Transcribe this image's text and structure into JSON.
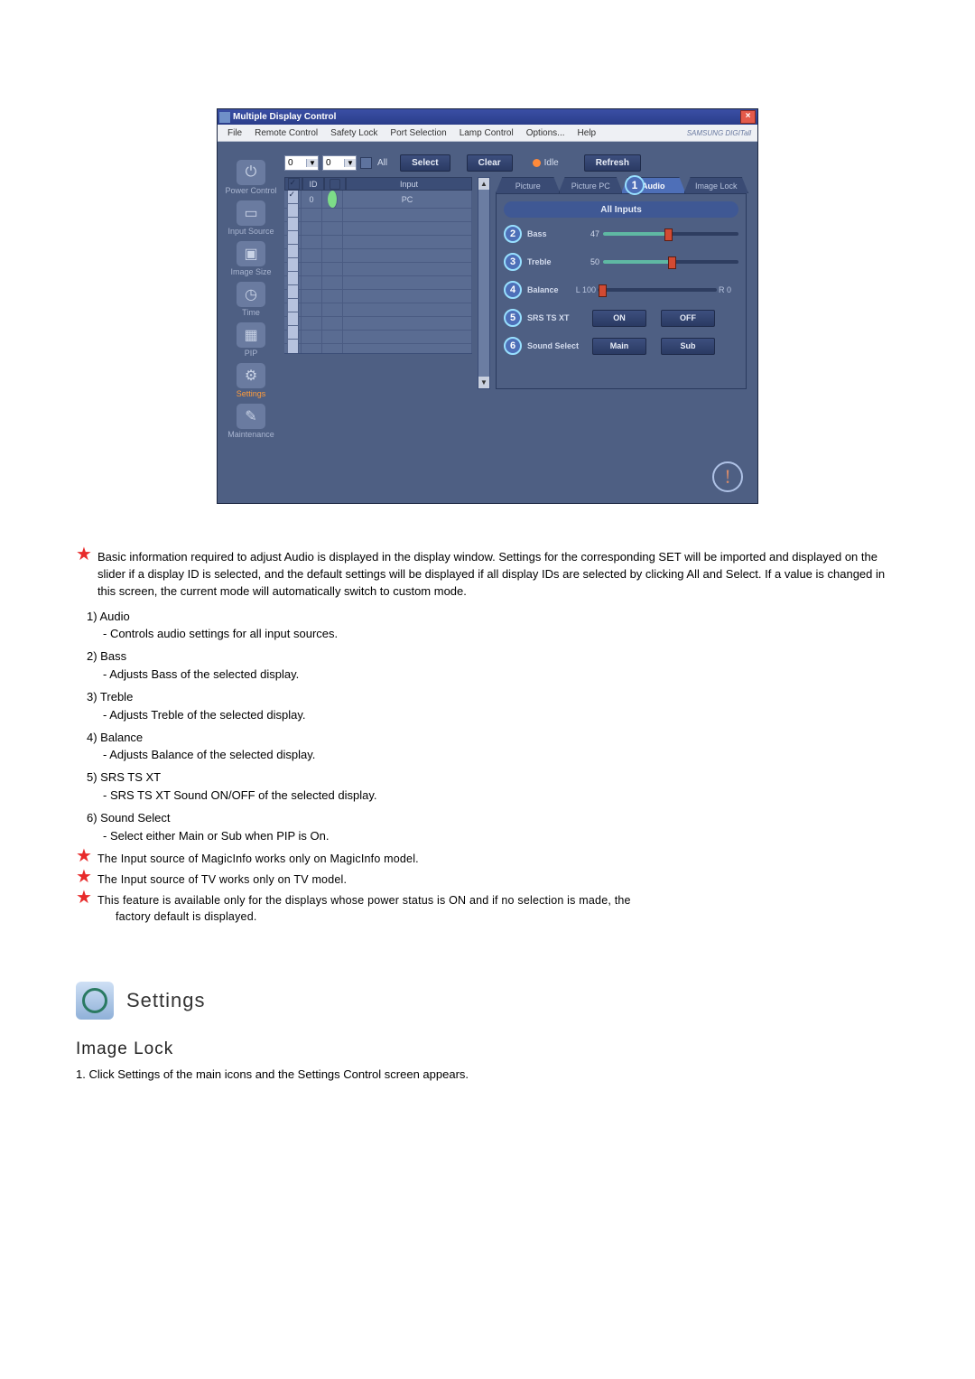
{
  "window": {
    "title": "Multiple Display Control",
    "brand": "SAMSUNG DIGITall"
  },
  "menu": [
    "File",
    "Remote Control",
    "Safety Lock",
    "Port Selection",
    "Lamp Control",
    "Options...",
    "Help"
  ],
  "sidebar": [
    {
      "label": "Power Control",
      "glyph": "⏻"
    },
    {
      "label": "Input Source",
      "glyph": "▭"
    },
    {
      "label": "Image Size",
      "glyph": "▣"
    },
    {
      "label": "Time",
      "glyph": "◷"
    },
    {
      "label": "PIP",
      "glyph": "▦"
    },
    {
      "label": "Settings",
      "glyph": "⚙",
      "active": true
    },
    {
      "label": "Maintenance",
      "glyph": "✎"
    }
  ],
  "top": {
    "dd1": "0",
    "dd2": "0",
    "all": "All",
    "select": "Select",
    "clear": "Clear",
    "idle": "Idle",
    "refresh": "Refresh"
  },
  "grid": {
    "headers": [
      "",
      "ID",
      "",
      "Input"
    ],
    "first_row": {
      "id": "0",
      "input": "PC"
    },
    "blank_rows": 11
  },
  "tabs": {
    "picture": "Picture",
    "picture_pc": "Picture PC",
    "audio": "Audio",
    "image_lock": "Image Lock",
    "callout1": "1"
  },
  "panel": {
    "all_inputs": "All Inputs",
    "bass": {
      "n": "2",
      "label": "Bass",
      "value": "47",
      "track_w": 150,
      "fill_pct": 47,
      "thumb_pct": 47
    },
    "treble": {
      "n": "3",
      "label": "Treble",
      "value": "50",
      "track_w": 150,
      "fill_pct": 50,
      "thumb_pct": 50
    },
    "balance": {
      "n": "4",
      "label": "Balance",
      "left": "L 100",
      "right": "R 0",
      "track_w": 132,
      "thumb_pct": 3
    },
    "srs": {
      "n": "5",
      "label": "SRS TS XT",
      "b1": "ON",
      "b2": "OFF"
    },
    "sound": {
      "n": "6",
      "label": "Sound Select",
      "b1": "Main",
      "b2": "Sub"
    }
  },
  "doc": {
    "star1": "Basic information required to adjust Audio is displayed in the display window. Settings for the corresponding SET will be imported and displayed on the slider if a display ID is selected, and the default settings will be displayed if all display IDs are selected by clicking All and Select. If a value is changed in this screen, the current mode will automatically switch to custom mode.",
    "items": [
      {
        "n": "1)",
        "title": "Audio",
        "desc": "- Controls audio settings for all input sources."
      },
      {
        "n": "2)",
        "title": "Bass",
        "desc": "- Adjusts Bass of the selected display."
      },
      {
        "n": "3)",
        "title": "Treble",
        "desc": "- Adjusts Treble of the selected display."
      },
      {
        "n": "4)",
        "title": "Balance",
        "desc": "- Adjusts Balance of the selected display."
      },
      {
        "n": "5)",
        "title": "SRS TS XT",
        "desc": "- SRS TS XT Sound ON/OFF of the selected display."
      },
      {
        "n": "6)",
        "title": "Sound Select",
        "desc": "- Select either Main or Sub when PIP is On."
      }
    ],
    "star2": "The Input source of MagicInfo works only on MagicInfo model.",
    "star3": "The Input source of TV works only on TV model.",
    "star4a": "This feature is available only for the displays whose power status is ON and if no selection is made, the",
    "star4b": "factory default is displayed."
  },
  "section": {
    "settings": "Settings",
    "sub": "Image Lock",
    "num1": "1.  Click Settings of the main icons and the Settings Control screen appears."
  }
}
